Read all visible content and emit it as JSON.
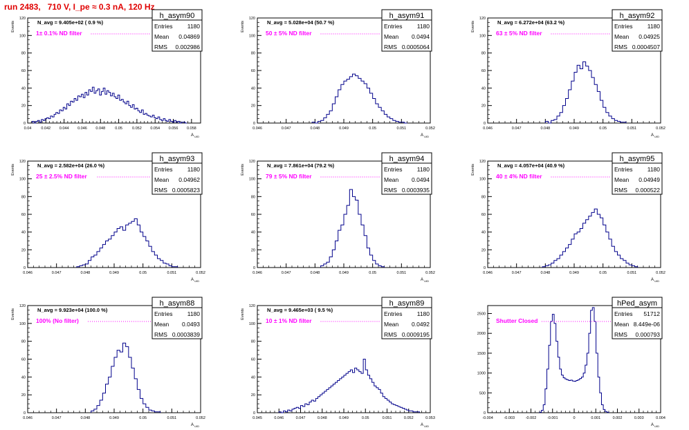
{
  "run_title": "run 2483,   710 V, I_pe ≈ 0.3 nA, 120 Hz",
  "colors": {
    "histogram": "#00008b",
    "annotation": "#ff00ff",
    "title": "#e00000"
  },
  "chart_data": [
    {
      "type": "bar",
      "name": "h_asym90",
      "stats": {
        "Entries": "1180",
        "Mean": "0.04869",
        "RMS": "0.002986"
      },
      "navg": "N_avg = 9.405e+02 ( 0.9 %)",
      "filter_label": "1± 0.1% ND filter",
      "ylabel": "Events",
      "xlabel": "A_UID",
      "xlim": [
        0.04,
        0.059
      ],
      "ylim": [
        0,
        120
      ],
      "xticks": [
        "0.04",
        "0.042",
        "0.044",
        "0.046",
        "0.048",
        "0.05",
        "0.052",
        "0.054",
        "0.056",
        "0.058"
      ],
      "xtick_values": [
        0.04,
        0.042,
        0.044,
        0.046,
        0.048,
        0.05,
        0.052,
        0.054,
        0.056,
        0.058
      ],
      "yticks": [
        0,
        20,
        40,
        60,
        80,
        100,
        120
      ],
      "bin_edges": [
        0.0405,
        0.0575
      ],
      "values": [
        2,
        0,
        2,
        3,
        1,
        4,
        3,
        5,
        6,
        5,
        8,
        7,
        10,
        12,
        11,
        15,
        14,
        18,
        16,
        22,
        20,
        25,
        24,
        28,
        26,
        31,
        30,
        33,
        29,
        35,
        32,
        38,
        36,
        41,
        34,
        37,
        39,
        32,
        36,
        40,
        33,
        37,
        35,
        31,
        34,
        30,
        28,
        32,
        26,
        27,
        24,
        22,
        25,
        20,
        18,
        21,
        16,
        17,
        14,
        12,
        15,
        10,
        11,
        9,
        8,
        7,
        9,
        6,
        5,
        7,
        4,
        3,
        5,
        3,
        2,
        4,
        2,
        1,
        3,
        1,
        2,
        0,
        1,
        1,
        0
      ]
    },
    {
      "type": "bar",
      "name": "h_asym91",
      "stats": {
        "Entries": "1180",
        "Mean": "0.0494",
        "RMS": "0.0005064"
      },
      "navg": "N_avg = 5.028e+04 (50.7 %)",
      "filter_label": "50 ± 5% ND filter",
      "ylabel": "Events",
      "xlabel": "A_UID",
      "xlim": [
        0.046,
        0.052
      ],
      "ylim": [
        0,
        120
      ],
      "xticks": [
        "0.046",
        "0.047",
        "0.048",
        "0.049",
        "0.05",
        "0.051",
        "0.052"
      ],
      "xtick_values": [
        0.046,
        0.047,
        0.048,
        0.049,
        0.05,
        0.051,
        0.052
      ],
      "yticks": [
        0,
        20,
        40,
        60,
        80,
        100,
        120
      ],
      "bin_edges": [
        0.0479,
        0.0512
      ],
      "values": [
        1,
        0,
        2,
        3,
        6,
        10,
        14,
        22,
        30,
        38,
        44,
        48,
        50,
        53,
        56,
        54,
        51,
        48,
        45,
        40,
        34,
        28,
        22,
        18,
        14,
        10,
        7,
        5,
        3,
        2,
        1,
        1,
        0
      ]
    },
    {
      "type": "bar",
      "name": "h_asym92",
      "stats": {
        "Entries": "1180",
        "Mean": "0.04925",
        "RMS": "0.0004507"
      },
      "navg": "N_avg = 6.272e+04 (63.2 %)",
      "filter_label": "63 ± 5% ND filter",
      "ylabel": "Events",
      "xlabel": "A_UID",
      "xlim": [
        0.046,
        0.052
      ],
      "ylim": [
        0,
        120
      ],
      "xticks": [
        "0.046",
        "0.047",
        "0.048",
        "0.049",
        "0.05",
        "0.051",
        "0.052"
      ],
      "xtick_values": [
        0.046,
        0.047,
        0.048,
        0.049,
        0.05,
        0.051,
        0.052
      ],
      "yticks": [
        0,
        20,
        40,
        60,
        80,
        100,
        120
      ],
      "bin_edges": [
        0.048,
        0.0508
      ],
      "values": [
        2,
        0,
        3,
        4,
        8,
        12,
        20,
        28,
        38,
        48,
        58,
        66,
        62,
        70,
        65,
        60,
        52,
        44,
        36,
        26,
        18,
        12,
        8,
        5,
        3,
        2,
        1,
        1
      ]
    },
    {
      "type": "bar",
      "name": "h_asym93",
      "stats": {
        "Entries": "1180",
        "Mean": "0.04962",
        "RMS": "0.0005823"
      },
      "navg": "N_avg = 2.582e+04 (26.0 %)",
      "filter_label": "25 ± 2.5% ND filter",
      "ylabel": "Events",
      "xlabel": "A_UID",
      "xlim": [
        0.046,
        0.052
      ],
      "ylim": [
        0,
        120
      ],
      "xticks": [
        "0.046",
        "0.047",
        "0.048",
        "0.049",
        "0.05",
        "0.051",
        "0.052"
      ],
      "xtick_values": [
        0.046,
        0.047,
        0.048,
        0.049,
        0.05,
        0.051,
        0.052
      ],
      "yticks": [
        0,
        20,
        40,
        60,
        80,
        100,
        120
      ],
      "bin_edges": [
        0.0477,
        0.0512
      ],
      "values": [
        1,
        2,
        3,
        4,
        8,
        12,
        14,
        18,
        22,
        26,
        30,
        32,
        36,
        40,
        44,
        46,
        42,
        48,
        50,
        52,
        55,
        48,
        40,
        35,
        30,
        24,
        18,
        14,
        10,
        8,
        5,
        4,
        2,
        1,
        1
      ]
    },
    {
      "type": "bar",
      "name": "h_asym94",
      "stats": {
        "Entries": "1180",
        "Mean": "0.0494",
        "RMS": "0.0003935"
      },
      "navg": "N_avg = 7.861e+04 (79.2 %)",
      "filter_label": "79 ± 5% ND filter",
      "ylabel": "Events",
      "xlabel": "A_UID",
      "xlim": [
        0.046,
        0.052
      ],
      "ylim": [
        0,
        120
      ],
      "xticks": [
        "0.046",
        "0.047",
        "0.048",
        "0.049",
        "0.05",
        "0.051",
        "0.052"
      ],
      "xtick_values": [
        0.046,
        0.047,
        0.048,
        0.049,
        0.05,
        0.051,
        0.052
      ],
      "yticks": [
        0,
        20,
        40,
        60,
        80,
        100,
        120
      ],
      "bin_edges": [
        0.0482,
        0.0504
      ],
      "values": [
        2,
        4,
        6,
        12,
        20,
        30,
        42,
        48,
        60,
        70,
        88,
        80,
        76,
        60,
        48,
        36,
        22,
        14,
        8,
        4,
        2,
        1
      ]
    },
    {
      "type": "bar",
      "name": "h_asym95",
      "stats": {
        "Entries": "1180",
        "Mean": "0.04949",
        "RMS": "0.000522"
      },
      "navg": "N_avg = 4.057e+04 (40.9 %)",
      "filter_label": "40 ± 4% ND filter",
      "ylabel": "Events",
      "xlabel": "A_UID",
      "xlim": [
        0.046,
        0.052
      ],
      "ylim": [
        0,
        120
      ],
      "xticks": [
        "0.046",
        "0.047",
        "0.048",
        "0.049",
        "0.05",
        "0.051",
        "0.052"
      ],
      "xtick_values": [
        0.046,
        0.047,
        0.048,
        0.049,
        0.05,
        0.051,
        0.052
      ],
      "yticks": [
        0,
        20,
        40,
        60,
        80,
        100,
        120
      ],
      "bin_edges": [
        0.0479,
        0.0512
      ],
      "values": [
        1,
        2,
        3,
        5,
        8,
        10,
        14,
        18,
        22,
        26,
        32,
        38,
        40,
        44,
        50,
        54,
        58,
        62,
        66,
        60,
        56,
        48,
        40,
        32,
        24,
        18,
        14,
        10,
        8,
        5,
        3,
        2,
        1
      ]
    },
    {
      "type": "bar",
      "name": "h_asym88",
      "stats": {
        "Entries": "1180",
        "Mean": "0.0493",
        "RMS": "0.0003839"
      },
      "navg": "N_avg = 9.923e+04 (100.0 %)",
      "filter_label": "100% (No filter)",
      "ylabel": "Events",
      "xlabel": "A_UID",
      "xlim": [
        0.046,
        0.052
      ],
      "ylim": [
        0,
        120
      ],
      "xticks": [
        "0.046",
        "0.047",
        "0.048",
        "0.049",
        "0.05",
        "0.051",
        "0.052"
      ],
      "xtick_values": [
        0.046,
        0.047,
        0.048,
        0.049,
        0.05,
        0.051,
        0.052
      ],
      "yticks": [
        0,
        20,
        40,
        60,
        80,
        100,
        120
      ],
      "bin_edges": [
        0.0482,
        0.0506
      ],
      "values": [
        2,
        4,
        8,
        14,
        22,
        32,
        40,
        52,
        62,
        70,
        68,
        78,
        74,
        62,
        50,
        38,
        26,
        16,
        10,
        6,
        3,
        2,
        1,
        1
      ]
    },
    {
      "type": "bar",
      "name": "h_asym89",
      "stats": {
        "Entries": "1180",
        "Mean": "0.0492",
        "RMS": "0.0009195"
      },
      "navg": "N_avg = 9.465e+03 ( 9.5 %)",
      "filter_label": "10 ± 1% ND filter",
      "ylabel": "Events",
      "xlabel": "A_UID",
      "xlim": [
        0.045,
        0.053
      ],
      "ylim": [
        0,
        120
      ],
      "xticks": [
        "0.045",
        "0.046",
        "0.047",
        "0.048",
        "0.049",
        "0.05",
        "0.051",
        "0.052",
        "0.053"
      ],
      "xtick_values": [
        0.045,
        0.046,
        0.047,
        0.048,
        0.049,
        0.05,
        0.051,
        0.052,
        0.053
      ],
      "yticks": [
        0,
        20,
        40,
        60,
        80,
        100,
        120
      ],
      "bin_edges": [
        0.046,
        0.0525
      ],
      "values": [
        1,
        0,
        2,
        1,
        3,
        2,
        4,
        5,
        6,
        5,
        8,
        7,
        10,
        9,
        12,
        14,
        13,
        16,
        18,
        20,
        22,
        24,
        26,
        28,
        30,
        32,
        34,
        36,
        38,
        40,
        42,
        44,
        46,
        48,
        45,
        50,
        48,
        46,
        44,
        60,
        48,
        42,
        38,
        34,
        30,
        28,
        26,
        22,
        18,
        16,
        14,
        12,
        10,
        9,
        8,
        7,
        6,
        5,
        4,
        3,
        2,
        2,
        1,
        1,
        1
      ]
    },
    {
      "type": "bar",
      "name": "hPed_asym",
      "stats": {
        "Entries": "51712",
        "Mean": "8.449e-06",
        "RMS": "0.000793"
      },
      "filter_label": "Shutter Closed",
      "ylabel": "",
      "xlabel": "A_UID",
      "xlim": [
        -0.004,
        0.004
      ],
      "ylim": [
        0,
        2700
      ],
      "xticks": [
        "-0.004",
        "-0.003",
        "-0.002",
        "-0.001",
        "0",
        "0.001",
        "0.002",
        "0.003",
        "0.004"
      ],
      "xtick_values": [
        -0.004,
        -0.003,
        -0.002,
        -0.001,
        0,
        0.001,
        0.002,
        0.003,
        0.004
      ],
      "yticks": [
        0,
        500,
        1000,
        1500,
        2000,
        2500
      ],
      "bin_edges": [
        -0.0016,
        0.0016
      ],
      "values": [
        10,
        60,
        200,
        600,
        1100,
        1700,
        2300,
        2480,
        2250,
        1800,
        1400,
        1100,
        950,
        880,
        850,
        830,
        810,
        820,
        800,
        790,
        810,
        830,
        860,
        900,
        1000,
        1200,
        1500,
        2000,
        2580,
        2650,
        2300,
        1500,
        900,
        500,
        200,
        80,
        30,
        10
      ]
    }
  ]
}
